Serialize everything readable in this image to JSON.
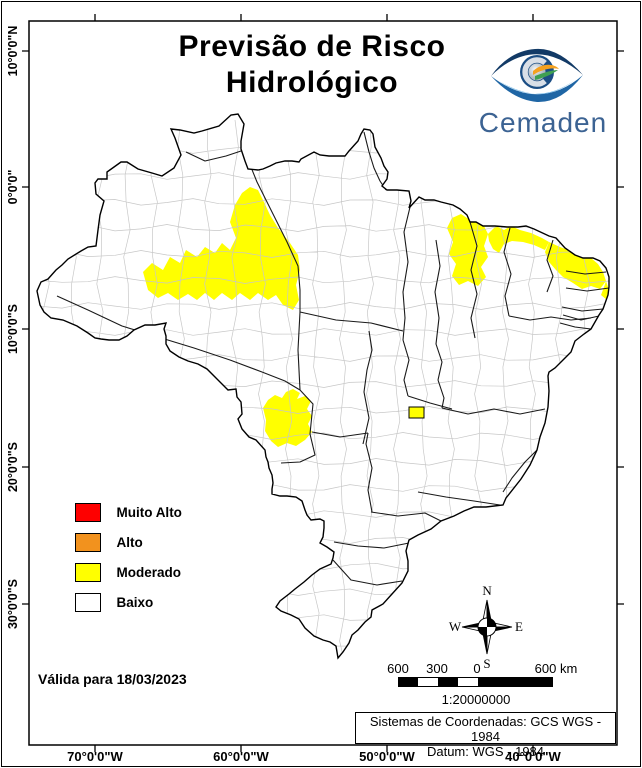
{
  "title": {
    "line1": "Previsão de Risco",
    "line2": "Hidrológico"
  },
  "logo": {
    "name": "Cemaden"
  },
  "legend": {
    "items": [
      {
        "label": "Muito Alto",
        "color": "#FE0000"
      },
      {
        "label": "Alto",
        "color": "#F2921E"
      },
      {
        "label": "Moderado",
        "color": "#FFFF00"
      },
      {
        "label": "Baixo",
        "color": "#FFFFFF"
      }
    ]
  },
  "validity": {
    "text": "Válida para 18/03/2023"
  },
  "scale_bar": {
    "labels": [
      "600",
      "300",
      "0",
      "600 km"
    ],
    "ratio": "1:20000000"
  },
  "compass": {
    "n": "N",
    "e": "E",
    "s": "S",
    "w": "W"
  },
  "coordinates_note": {
    "line1": "Sistemas de Coordenadas: GCS WGS - 1984",
    "line2": "Datum: WGS - 1984"
  },
  "axes": {
    "lat": [
      "10°0'0\"N",
      "0°0'0\"",
      "10°0'0\"S",
      "20°0'0\"S",
      "30°0'0\"S"
    ],
    "lon": [
      "70°0'0\"W",
      "60°0'0\"W",
      "50°0'0\"W",
      "40°0'0\"W"
    ]
  }
}
